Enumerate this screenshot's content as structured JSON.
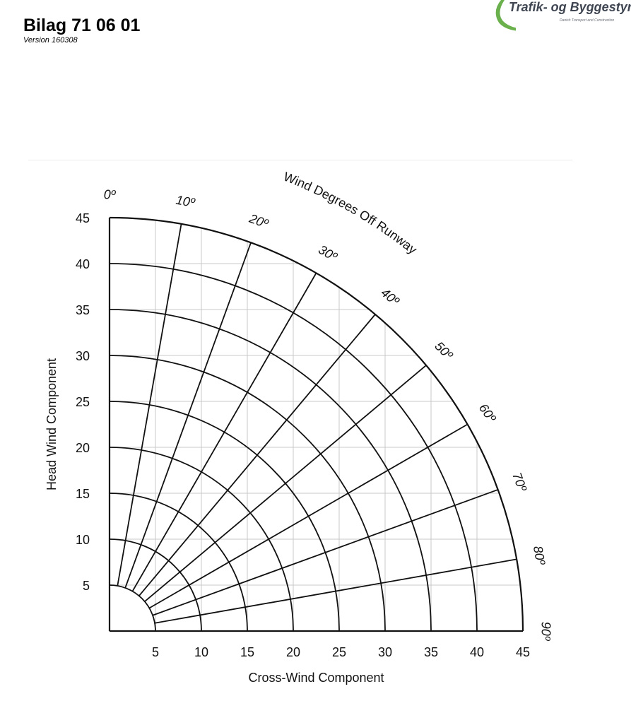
{
  "header": {
    "title": "Bilag 71 06 01",
    "version": "Version 160308"
  },
  "logo": {
    "name": "Trafik- og Byggestyrels",
    "subtitle": "Danish Transport and Construction"
  },
  "chart_data": {
    "type": "polar-component-grid",
    "title": "",
    "xlabel": "Cross-Wind Component",
    "ylabel": "Head Wind Component",
    "angle_label": "Wind Degrees Off Runway",
    "x_ticks": [
      "5",
      "10",
      "15",
      "20",
      "25",
      "30",
      "35",
      "40",
      "45"
    ],
    "y_ticks": [
      "5",
      "10",
      "15",
      "20",
      "25",
      "30",
      "35",
      "40",
      "45"
    ],
    "angle_ticks": [
      "0º",
      "10º",
      "20º",
      "30º",
      "40º",
      "50º",
      "60º",
      "70º",
      "80º",
      "90º"
    ],
    "angles_deg": [
      10,
      20,
      30,
      40,
      50,
      60,
      70,
      80
    ],
    "radii": [
      5,
      10,
      15,
      20,
      25,
      30,
      35,
      40,
      45
    ],
    "xlim": [
      0,
      45
    ],
    "ylim": [
      0,
      45
    ],
    "grid": true
  }
}
